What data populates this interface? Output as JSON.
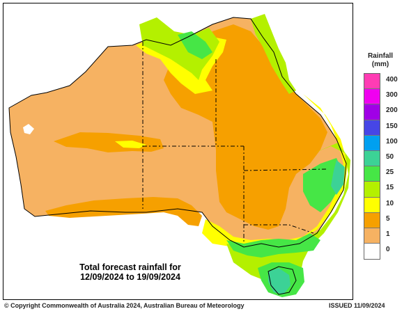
{
  "map": {
    "title_line1": "Total forecast rainfall for",
    "title_line2": "12/09/2024 to 19/09/2024",
    "colors": {
      "c0": "#ffffff",
      "c1": "#f6b262",
      "c5": "#f6a000",
      "c10": "#ffff00",
      "c15": "#b4f000",
      "c25": "#46e646",
      "c50": "#3cd296",
      "c100": "#00a0f0",
      "c150": "#4646e6",
      "c200": "#a000e6",
      "c300": "#f000f0",
      "c400": "#ff3cb4"
    }
  },
  "legend": {
    "title": "Rainfall",
    "unit": "(mm)",
    "items": [
      {
        "label": "400",
        "color": "#ff3cb4"
      },
      {
        "label": "300",
        "color": "#f000f0"
      },
      {
        "label": "200",
        "color": "#a000e6"
      },
      {
        "label": "150",
        "color": "#4646e6"
      },
      {
        "label": "100",
        "color": "#00a0f0"
      },
      {
        "label": "50",
        "color": "#3cd296"
      },
      {
        "label": "25",
        "color": "#46e646"
      },
      {
        "label": "15",
        "color": "#b4f000"
      },
      {
        "label": "10",
        "color": "#ffff00"
      },
      {
        "label": "5",
        "color": "#f6a000"
      },
      {
        "label": "1",
        "color": "#f6b262"
      },
      {
        "label": "0",
        "color": "#ffffff"
      }
    ]
  },
  "footer": {
    "copyright": "© Copyright Commonwealth of Australia 2024, Australian Bureau of Meteorology",
    "issued": "ISSUED 11/09/2024"
  }
}
